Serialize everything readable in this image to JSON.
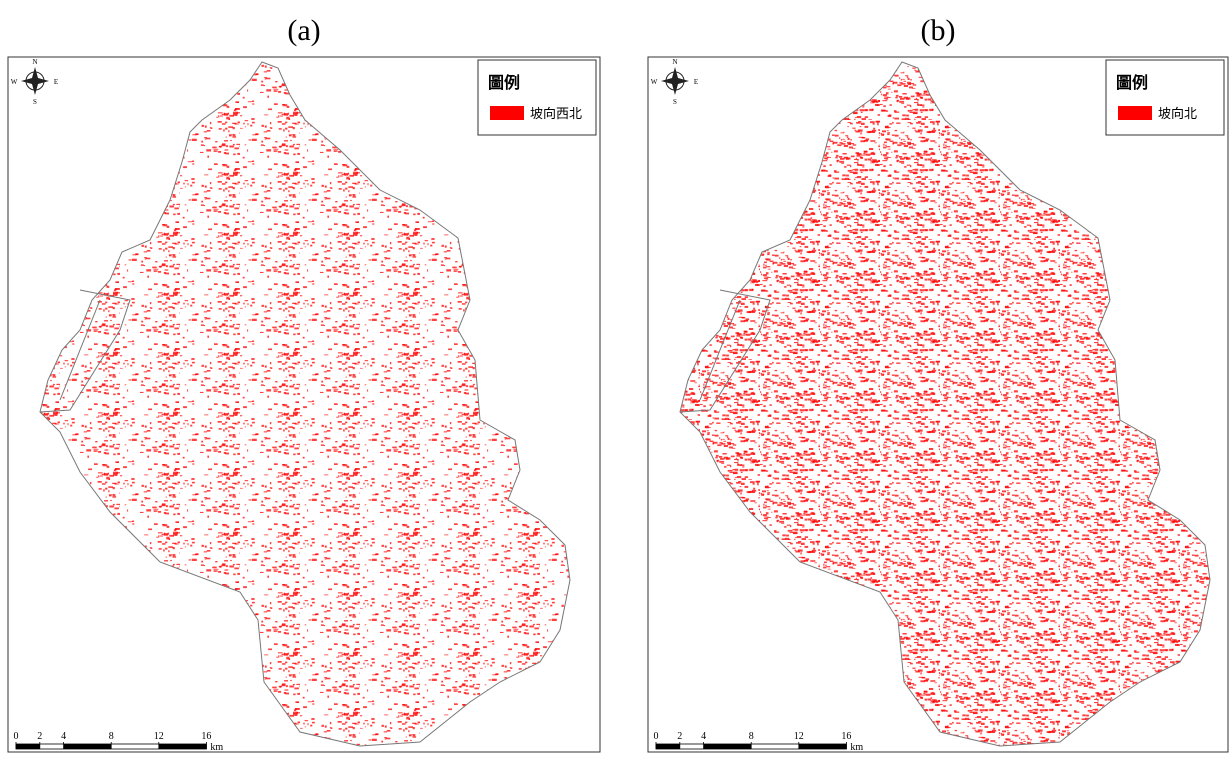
{
  "panels": [
    {
      "label": "(a)",
      "legend": {
        "title": "圖例",
        "items": [
          {
            "label": "坡向西北",
            "color": "#ff0000"
          }
        ]
      },
      "compass": {
        "n": "N",
        "s": "S",
        "w": "W",
        "e": "E"
      },
      "scale_bar": {
        "ticks": [
          0,
          2,
          4,
          8,
          12,
          16
        ],
        "unit": "km"
      }
    },
    {
      "label": "(b)",
      "legend": {
        "title": "圖例",
        "items": [
          {
            "label": "坡向北",
            "color": "#ff0000"
          }
        ]
      },
      "compass": {
        "n": "N",
        "s": "S",
        "w": "W",
        "e": "E"
      },
      "scale_bar": {
        "ticks": [
          0,
          2,
          4,
          8,
          12,
          16
        ],
        "unit": "km"
      }
    }
  ]
}
